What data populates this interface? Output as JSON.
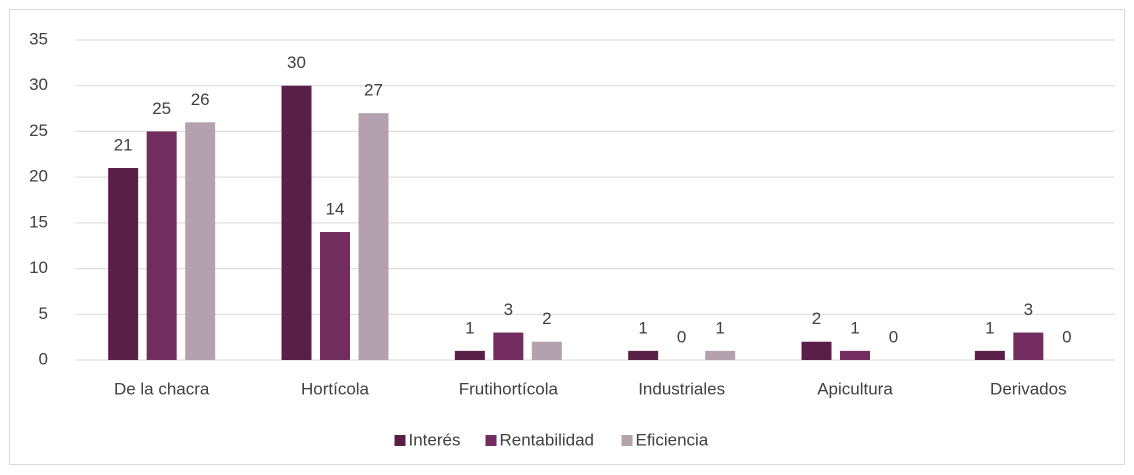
{
  "chart_data": {
    "type": "bar",
    "categories": [
      "De la chacra",
      "Hortícola",
      "Frutihortícola",
      "Industriales",
      "Apicultura",
      "Derivados"
    ],
    "series": [
      {
        "name": "Interés",
        "color": "#5a1f46",
        "values": [
          21,
          30,
          1,
          1,
          2,
          1
        ]
      },
      {
        "name": "Rentabilidad",
        "color": "#722c5e",
        "values": [
          25,
          14,
          3,
          0,
          1,
          3
        ]
      },
      {
        "name": "Eficiencia",
        "color": "#b3a2ad",
        "values": [
          26,
          27,
          2,
          1,
          0,
          0
        ]
      }
    ],
    "ylim": [
      0,
      35
    ],
    "yticks": [
      0,
      5,
      10,
      15,
      20,
      25,
      30,
      35
    ],
    "grid": true,
    "legend": "bottom"
  }
}
